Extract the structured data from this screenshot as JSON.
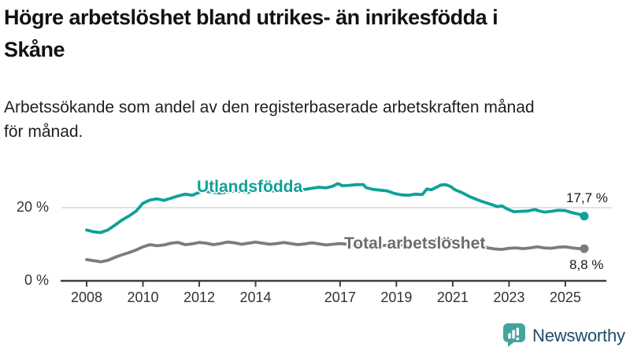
{
  "header": {
    "title_line1": "Högre arbetslöshet bland utrikes- än inrikesfödda i",
    "title_line2": "Skåne",
    "subtitle_line1": "Arbetssökande som andel av den registerbaserade arbetskraften månad",
    "subtitle_line2": "för månad."
  },
  "chart_data": {
    "type": "line",
    "title": "Högre arbetslöshet bland utrikes- än inrikesfödda i Skåne",
    "subtitle": "Arbetssökande som andel av den registerbaserade arbetskraften månad för månad.",
    "xlabel": "",
    "ylabel": "",
    "y_unit": "%",
    "ylim": [
      0,
      30
    ],
    "xlim": [
      2007.1,
      2026.4
    ],
    "grid": "single horizontal gridline at 20 %",
    "gridlines": [
      20
    ],
    "legend_position": "inline labels on lines",
    "x_ticks": [
      {
        "value": 2008,
        "label": "2008"
      },
      {
        "value": 2010,
        "label": "2010"
      },
      {
        "value": 2012,
        "label": "2012"
      },
      {
        "value": 2014,
        "label": "2014"
      },
      {
        "value": 2017,
        "label": "2017"
      },
      {
        "value": 2019,
        "label": "2019"
      },
      {
        "value": 2021,
        "label": "2021"
      },
      {
        "value": 2023,
        "label": "2023"
      },
      {
        "value": 2025,
        "label": "2025"
      }
    ],
    "y_ticks": [
      {
        "value": 0,
        "label": "0 %"
      },
      {
        "value": 20,
        "label": "20 %"
      }
    ],
    "series": [
      {
        "id": "utlandsfodda",
        "name": "Utlandsfödda",
        "color": "#0fa197",
        "label_color": "#0fa197",
        "end_label": "17,7 %",
        "end_value": 17.7,
        "points": [
          [
            2008.0,
            13.9
          ],
          [
            2008.25,
            13.4
          ],
          [
            2008.5,
            13.2
          ],
          [
            2008.75,
            13.9
          ],
          [
            2009.0,
            15.2
          ],
          [
            2009.25,
            16.6
          ],
          [
            2009.5,
            17.7
          ],
          [
            2009.75,
            19.0
          ],
          [
            2010.0,
            21.2
          ],
          [
            2010.25,
            22.1
          ],
          [
            2010.5,
            22.4
          ],
          [
            2010.75,
            22.0
          ],
          [
            2011.0,
            22.6
          ],
          [
            2011.25,
            23.2
          ],
          [
            2011.5,
            23.7
          ],
          [
            2011.75,
            23.4
          ],
          [
            2012.0,
            24.2
          ],
          [
            2012.25,
            24.5
          ],
          [
            2012.5,
            24.2
          ],
          [
            2012.75,
            24.0
          ],
          [
            2013.0,
            24.3
          ],
          [
            2013.25,
            24.6
          ],
          [
            2013.5,
            24.4
          ],
          [
            2013.75,
            24.2
          ],
          [
            2014.0,
            24.6
          ],
          [
            2014.25,
            24.9
          ],
          [
            2014.5,
            24.7
          ],
          [
            2014.75,
            24.5
          ],
          [
            2015.0,
            24.9
          ],
          [
            2015.25,
            25.1
          ],
          [
            2015.5,
            24.9
          ],
          [
            2015.75,
            25.0
          ],
          [
            2016.0,
            25.3
          ],
          [
            2016.25,
            25.6
          ],
          [
            2016.5,
            25.4
          ],
          [
            2016.75,
            25.9
          ],
          [
            2016.92,
            26.6
          ],
          [
            2017.08,
            26.0
          ],
          [
            2017.33,
            26.1
          ],
          [
            2017.58,
            26.3
          ],
          [
            2017.83,
            26.3
          ],
          [
            2017.92,
            25.5
          ],
          [
            2018.17,
            25.0
          ],
          [
            2018.42,
            24.8
          ],
          [
            2018.67,
            24.6
          ],
          [
            2018.92,
            23.9
          ],
          [
            2019.17,
            23.5
          ],
          [
            2019.42,
            23.4
          ],
          [
            2019.67,
            23.7
          ],
          [
            2019.92,
            23.6
          ],
          [
            2020.08,
            25.1
          ],
          [
            2020.25,
            24.9
          ],
          [
            2020.42,
            25.6
          ],
          [
            2020.58,
            26.2
          ],
          [
            2020.75,
            26.3
          ],
          [
            2020.92,
            25.8
          ],
          [
            2021.08,
            24.9
          ],
          [
            2021.33,
            24.1
          ],
          [
            2021.58,
            23.1
          ],
          [
            2021.83,
            22.3
          ],
          [
            2022.08,
            21.6
          ],
          [
            2022.33,
            21.0
          ],
          [
            2022.58,
            20.3
          ],
          [
            2022.75,
            20.5
          ],
          [
            2022.92,
            19.7
          ],
          [
            2023.17,
            18.9
          ],
          [
            2023.42,
            19.0
          ],
          [
            2023.67,
            19.1
          ],
          [
            2023.92,
            19.5
          ],
          [
            2024.08,
            19.1
          ],
          [
            2024.25,
            18.8
          ],
          [
            2024.5,
            19.0
          ],
          [
            2024.75,
            19.3
          ],
          [
            2025.0,
            19.2
          ],
          [
            2025.25,
            18.6
          ],
          [
            2025.5,
            18.2
          ],
          [
            2025.67,
            17.7
          ]
        ]
      },
      {
        "id": "total",
        "name": "Total arbetslöshet",
        "color": "#7c7c80",
        "label_color": "#6b6b70",
        "end_label": "8,8 %",
        "end_value": 8.8,
        "points": [
          [
            2008.0,
            5.8
          ],
          [
            2008.25,
            5.5
          ],
          [
            2008.5,
            5.2
          ],
          [
            2008.75,
            5.6
          ],
          [
            2009.0,
            6.4
          ],
          [
            2009.25,
            7.1
          ],
          [
            2009.5,
            7.7
          ],
          [
            2009.75,
            8.4
          ],
          [
            2010.0,
            9.3
          ],
          [
            2010.25,
            9.9
          ],
          [
            2010.5,
            9.6
          ],
          [
            2010.75,
            9.8
          ],
          [
            2011.0,
            10.3
          ],
          [
            2011.25,
            10.5
          ],
          [
            2011.5,
            9.9
          ],
          [
            2011.75,
            10.1
          ],
          [
            2012.0,
            10.5
          ],
          [
            2012.25,
            10.3
          ],
          [
            2012.5,
            9.9
          ],
          [
            2012.75,
            10.2
          ],
          [
            2013.0,
            10.6
          ],
          [
            2013.25,
            10.4
          ],
          [
            2013.5,
            10.0
          ],
          [
            2013.75,
            10.3
          ],
          [
            2014.0,
            10.6
          ],
          [
            2014.25,
            10.3
          ],
          [
            2014.5,
            10.0
          ],
          [
            2014.75,
            10.2
          ],
          [
            2015.0,
            10.5
          ],
          [
            2015.25,
            10.2
          ],
          [
            2015.5,
            9.9
          ],
          [
            2015.75,
            10.1
          ],
          [
            2016.0,
            10.4
          ],
          [
            2016.25,
            10.1
          ],
          [
            2016.5,
            9.8
          ],
          [
            2016.75,
            10.0
          ],
          [
            2017.0,
            10.2
          ],
          [
            2017.25,
            10.0
          ],
          [
            2017.5,
            9.7
          ],
          [
            2017.75,
            9.9
          ],
          [
            2018.0,
            10.0
          ],
          [
            2018.25,
            9.8
          ],
          [
            2018.5,
            9.6
          ],
          [
            2018.75,
            9.8
          ],
          [
            2019.0,
            9.9
          ],
          [
            2019.25,
            9.7
          ],
          [
            2019.5,
            9.5
          ],
          [
            2019.75,
            9.6
          ],
          [
            2020.0,
            9.7
          ],
          [
            2020.17,
            10.8
          ],
          [
            2020.33,
            11.1
          ],
          [
            2020.5,
            11.4
          ],
          [
            2020.75,
            11.2
          ],
          [
            2021.0,
            10.9
          ],
          [
            2021.25,
            10.5
          ],
          [
            2021.5,
            10.1
          ],
          [
            2021.75,
            9.7
          ],
          [
            2022.0,
            9.4
          ],
          [
            2022.25,
            9.0
          ],
          [
            2022.5,
            8.7
          ],
          [
            2022.75,
            8.6
          ],
          [
            2023.0,
            8.9
          ],
          [
            2023.25,
            9.0
          ],
          [
            2023.5,
            8.8
          ],
          [
            2023.75,
            9.0
          ],
          [
            2024.0,
            9.3
          ],
          [
            2024.25,
            9.0
          ],
          [
            2024.5,
            8.9
          ],
          [
            2024.75,
            9.2
          ],
          [
            2025.0,
            9.3
          ],
          [
            2025.25,
            9.0
          ],
          [
            2025.5,
            8.8
          ],
          [
            2025.67,
            8.8
          ]
        ]
      }
    ],
    "axis_color": "#3f3f3f",
    "gridline_color": "#d8d8d8"
  },
  "logo": {
    "text": "Newsworthy",
    "icon": "newsworthy-chart-bubble-icon",
    "icon_color": "#43a49c",
    "text_color": "#1f4a68"
  }
}
